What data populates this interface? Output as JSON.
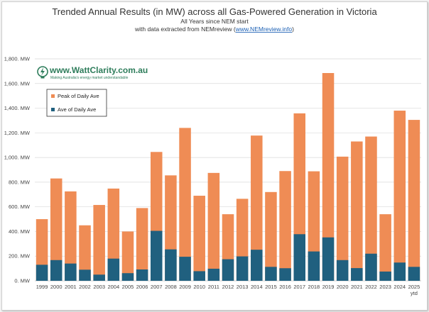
{
  "colors": {
    "peak": "#ef8c55",
    "average": "#20607f",
    "grid": "#d9d9d9",
    "link": "#1a5fb4",
    "logo": "#2e7d5b"
  },
  "logo": {
    "brand": "www.WattClarity.com.au",
    "tagline": "Making Australia's energy market understandable"
  },
  "chart_data": {
    "type": "bar",
    "title": "Trended Annual Results (in MW) across all Gas-Powered Generation in Victoria",
    "subtitle_line1": "All Years since NEM start",
    "subtitle_prefix": "with data extracted from NEMreview (",
    "subtitle_link": "www.NEMreview.info",
    "subtitle_suffix": ")",
    "xlabel": "",
    "ylabel": "",
    "ylim": [
      0,
      1800
    ],
    "yticks": [
      0,
      200,
      400,
      600,
      800,
      1000,
      1200,
      1400,
      1600,
      1800
    ],
    "ytick_labels": [
      "0. MW",
      "200. MW",
      "400. MW",
      "600. MW",
      "800. MW",
      "1,000. MW",
      "1,200. MW",
      "1,400. MW",
      "1,600. MW",
      "1,800. MW"
    ],
    "grid": true,
    "legend_position": "top-left",
    "categories": [
      "1999",
      "2000",
      "2001",
      "2002",
      "2003",
      "2004",
      "2005",
      "2006",
      "2007",
      "2008",
      "2009",
      "2010",
      "2011",
      "2012",
      "2013",
      "2014",
      "2015",
      "2016",
      "2017",
      "2018",
      "2019",
      "2020",
      "2021",
      "2022",
      "2023",
      "2024",
      "2025"
    ],
    "category_sublabels": {
      "2025": "ytd"
    },
    "series": [
      {
        "name": "Peak of Daily Ave",
        "values": [
          500,
          830,
          725,
          450,
          615,
          748,
          400,
          590,
          1045,
          855,
          1240,
          690,
          875,
          540,
          665,
          1178,
          720,
          890,
          1358,
          888,
          1685,
          1007,
          1130,
          1170,
          540,
          1380,
          1305
        ]
      },
      {
        "name": "Ave of Daily Ave",
        "values": [
          130,
          168,
          140,
          90,
          50,
          180,
          62,
          92,
          405,
          255,
          195,
          78,
          98,
          175,
          198,
          252,
          113,
          102,
          378,
          238,
          352,
          168,
          103,
          220,
          75,
          148,
          113
        ]
      }
    ]
  }
}
